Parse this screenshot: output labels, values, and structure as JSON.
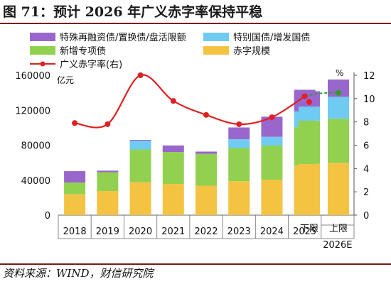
{
  "header": {
    "title": "图 71：预计 2026 年广义赤字率保持平稳"
  },
  "footer": {
    "source": "资料来源：WIND，财信研究院"
  },
  "chart_data": {
    "type": "bar",
    "stacked": true,
    "title": "",
    "ylabel_left": "亿元",
    "ylabel_right": "%",
    "ylim_left": [
      0,
      160000
    ],
    "ylim_right": [
      0,
      12
    ],
    "yticks_left": [
      "0",
      "40000",
      "80000",
      "120000",
      "160000"
    ],
    "yticks_right": [
      "0",
      "2",
      "4",
      "6",
      "8",
      "10",
      "12"
    ],
    "grid": false,
    "legend_position": "top",
    "categories": [
      "2018",
      "2019",
      "2020",
      "2021",
      "2022",
      "2023",
      "2024",
      "2025",
      "下限",
      "上限"
    ],
    "x_group_labels": [
      "2018",
      "2019",
      "2020",
      "2021",
      "2022",
      "2023",
      "2024",
      "2025",
      "2026E"
    ],
    "series": [
      {
        "name": "赤字规模",
        "color": "#F5C342",
        "values": [
          23800,
          27600,
          37600,
          35700,
          33700,
          38800,
          40600,
          56600,
          58600,
          59800
        ]
      },
      {
        "name": "新增专项债",
        "color": "#92D050",
        "values": [
          13500,
          21500,
          37500,
          36500,
          36500,
          38000,
          39000,
          44000,
          49600,
          50500
        ]
      },
      {
        "name": "特别国债/增发国债",
        "color": "#6FCBF1",
        "values": [
          0,
          0,
          10000,
          0,
          0,
          10000,
          10000,
          18000,
          16000,
          25000
        ]
      },
      {
        "name": "特殊再融资债/置换债/盘活限额",
        "color": "#9966CC",
        "values": [
          13000,
          1800,
          1000,
          7500,
          2500,
          13500,
          23000,
          24800,
          17500,
          19800
        ]
      }
    ],
    "line_series": {
      "name": "广义赤字率(右)",
      "color": "#E02020",
      "values": [
        7.9,
        7.8,
        12.0,
        9.8,
        8.6,
        7.8,
        8.4,
        10.2,
        9.7,
        10.5
      ],
      "dashed_segments": [
        [
          7,
          8
        ],
        [
          7,
          9
        ]
      ],
      "extra_marker_color": "#2E9E2E"
    }
  }
}
